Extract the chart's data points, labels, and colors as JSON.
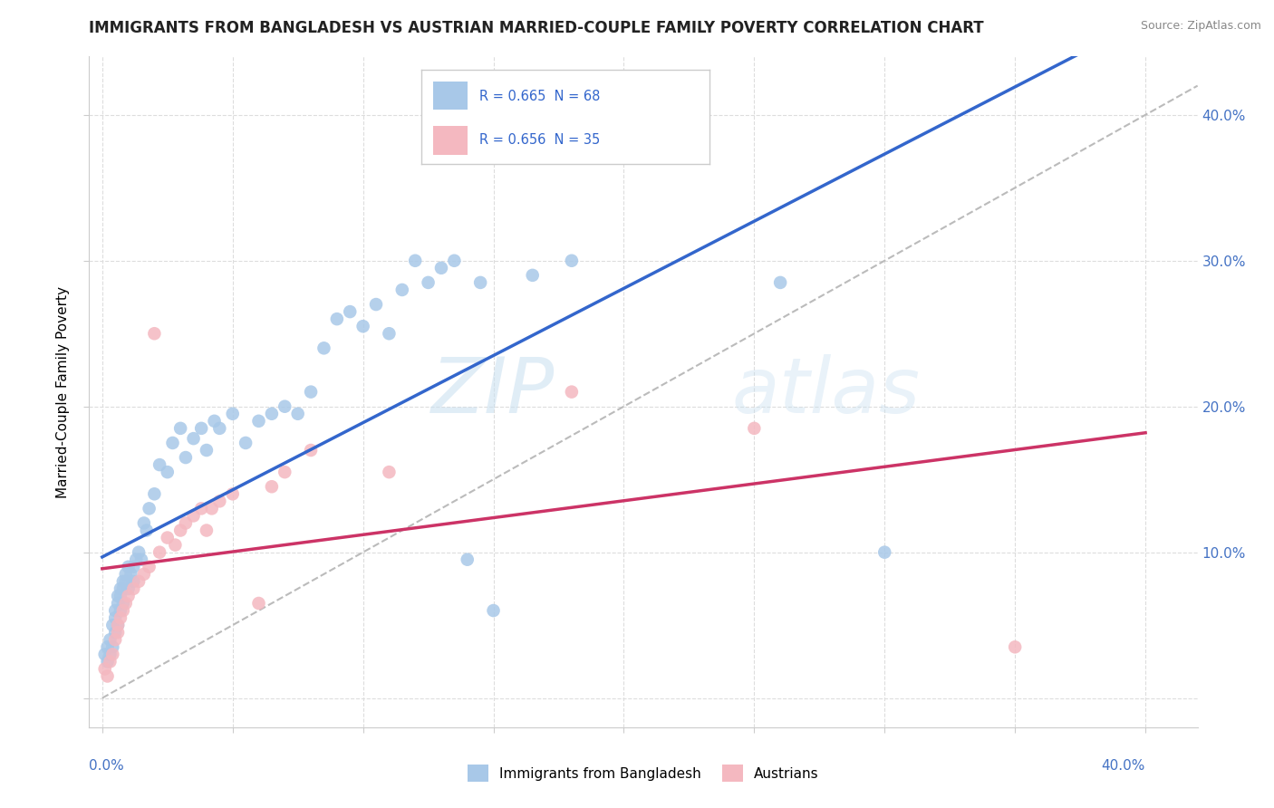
{
  "title": "IMMIGRANTS FROM BANGLADESH VS AUSTRIAN MARRIED-COUPLE FAMILY POVERTY CORRELATION CHART",
  "source": "Source: ZipAtlas.com",
  "ylabel": "Married-Couple Family Poverty",
  "watermark_zip": "ZIP",
  "watermark_atlas": "atlas",
  "legend_blue_text": "R = 0.665  N = 68",
  "legend_pink_text": "R = 0.656  N = 35",
  "blue_color": "#a8c8e8",
  "pink_color": "#f4b8c0",
  "blue_line_color": "#3366cc",
  "pink_line_color": "#cc3366",
  "trendline_color": "#aaaaaa",
  "legend_text_color": "#3366cc",
  "legend_pink_r_color": "#cc3366",
  "blue_scatter": [
    [
      0.001,
      0.03
    ],
    [
      0.002,
      0.025
    ],
    [
      0.002,
      0.035
    ],
    [
      0.003,
      0.04
    ],
    [
      0.003,
      0.03
    ],
    [
      0.004,
      0.035
    ],
    [
      0.004,
      0.05
    ],
    [
      0.005,
      0.045
    ],
    [
      0.005,
      0.06
    ],
    [
      0.005,
      0.055
    ],
    [
      0.006,
      0.05
    ],
    [
      0.006,
      0.07
    ],
    [
      0.006,
      0.065
    ],
    [
      0.007,
      0.06
    ],
    [
      0.007,
      0.075
    ],
    [
      0.007,
      0.07
    ],
    [
      0.008,
      0.065
    ],
    [
      0.008,
      0.08
    ],
    [
      0.008,
      0.075
    ],
    [
      0.009,
      0.08
    ],
    [
      0.009,
      0.085
    ],
    [
      0.01,
      0.09
    ],
    [
      0.01,
      0.075
    ],
    [
      0.011,
      0.085
    ],
    [
      0.012,
      0.09
    ],
    [
      0.012,
      0.08
    ],
    [
      0.013,
      0.095
    ],
    [
      0.014,
      0.1
    ],
    [
      0.015,
      0.095
    ],
    [
      0.016,
      0.12
    ],
    [
      0.017,
      0.115
    ],
    [
      0.018,
      0.13
    ],
    [
      0.02,
      0.14
    ],
    [
      0.022,
      0.16
    ],
    [
      0.025,
      0.155
    ],
    [
      0.027,
      0.175
    ],
    [
      0.03,
      0.185
    ],
    [
      0.032,
      0.165
    ],
    [
      0.035,
      0.178
    ],
    [
      0.038,
      0.185
    ],
    [
      0.04,
      0.17
    ],
    [
      0.043,
      0.19
    ],
    [
      0.045,
      0.185
    ],
    [
      0.05,
      0.195
    ],
    [
      0.055,
      0.175
    ],
    [
      0.06,
      0.19
    ],
    [
      0.065,
      0.195
    ],
    [
      0.07,
      0.2
    ],
    [
      0.075,
      0.195
    ],
    [
      0.08,
      0.21
    ],
    [
      0.085,
      0.24
    ],
    [
      0.09,
      0.26
    ],
    [
      0.095,
      0.265
    ],
    [
      0.1,
      0.255
    ],
    [
      0.105,
      0.27
    ],
    [
      0.11,
      0.25
    ],
    [
      0.115,
      0.28
    ],
    [
      0.12,
      0.3
    ],
    [
      0.125,
      0.285
    ],
    [
      0.13,
      0.295
    ],
    [
      0.135,
      0.3
    ],
    [
      0.14,
      0.095
    ],
    [
      0.145,
      0.285
    ],
    [
      0.15,
      0.06
    ],
    [
      0.165,
      0.29
    ],
    [
      0.18,
      0.3
    ],
    [
      0.26,
      0.285
    ],
    [
      0.3,
      0.1
    ]
  ],
  "pink_scatter": [
    [
      0.001,
      0.02
    ],
    [
      0.002,
      0.015
    ],
    [
      0.003,
      0.025
    ],
    [
      0.004,
      0.03
    ],
    [
      0.005,
      0.04
    ],
    [
      0.006,
      0.045
    ],
    [
      0.006,
      0.05
    ],
    [
      0.007,
      0.055
    ],
    [
      0.008,
      0.06
    ],
    [
      0.009,
      0.065
    ],
    [
      0.01,
      0.07
    ],
    [
      0.012,
      0.075
    ],
    [
      0.014,
      0.08
    ],
    [
      0.016,
      0.085
    ],
    [
      0.018,
      0.09
    ],
    [
      0.02,
      0.25
    ],
    [
      0.022,
      0.1
    ],
    [
      0.025,
      0.11
    ],
    [
      0.028,
      0.105
    ],
    [
      0.03,
      0.115
    ],
    [
      0.032,
      0.12
    ],
    [
      0.035,
      0.125
    ],
    [
      0.038,
      0.13
    ],
    [
      0.04,
      0.115
    ],
    [
      0.042,
      0.13
    ],
    [
      0.045,
      0.135
    ],
    [
      0.05,
      0.14
    ],
    [
      0.06,
      0.065
    ],
    [
      0.065,
      0.145
    ],
    [
      0.07,
      0.155
    ],
    [
      0.08,
      0.17
    ],
    [
      0.11,
      0.155
    ],
    [
      0.18,
      0.21
    ],
    [
      0.25,
      0.185
    ],
    [
      0.35,
      0.035
    ]
  ],
  "xlim": [
    0.0,
    0.4
  ],
  "ylim": [
    0.0,
    0.42
  ],
  "yticks": [
    0.0,
    0.1,
    0.2,
    0.3,
    0.4
  ],
  "ytick_labels_right": [
    "",
    "10.0%",
    "20.0%",
    "30.0%",
    "40.0%"
  ],
  "title_fontsize": 12,
  "axis_label_fontsize": 11,
  "tick_fontsize": 11
}
